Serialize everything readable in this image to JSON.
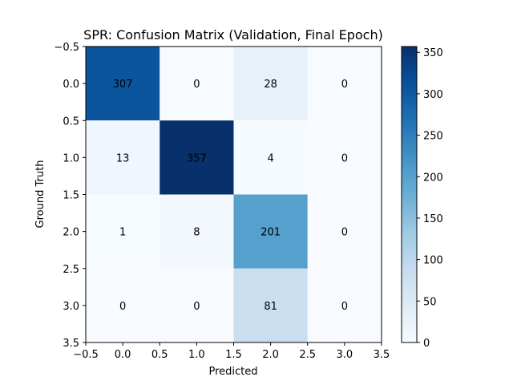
{
  "chart_data": {
    "type": "heatmap",
    "title": "SPR: Confusion Matrix (Validation, Final Epoch)",
    "xlabel": "Predicted",
    "ylabel": "Ground Truth",
    "rows": [
      0,
      1,
      2,
      3
    ],
    "cols": [
      0,
      1,
      2,
      3
    ],
    "matrix": [
      [
        307,
        0,
        28,
        0
      ],
      [
        13,
        357,
        4,
        0
      ],
      [
        1,
        8,
        201,
        0
      ],
      [
        0,
        0,
        81,
        0
      ]
    ],
    "cell_labels": [
      [
        "307",
        "0",
        "28",
        "0"
      ],
      [
        "13",
        "357",
        "4",
        "0"
      ],
      [
        "1",
        "8",
        "201",
        "0"
      ],
      [
        "0",
        "0",
        "81",
        "0"
      ]
    ],
    "xlim": [
      -0.5,
      3.5
    ],
    "ylim": [
      3.5,
      -0.5
    ],
    "xticks": [
      -0.5,
      0.0,
      0.5,
      1.0,
      1.5,
      2.0,
      2.5,
      3.0,
      3.5
    ],
    "xtick_labels": [
      "−0.5",
      "0.0",
      "0.5",
      "1.0",
      "1.5",
      "2.0",
      "2.5",
      "3.0",
      "3.5"
    ],
    "yticks": [
      -0.5,
      0.0,
      0.5,
      1.0,
      1.5,
      2.0,
      2.5,
      3.0,
      3.5
    ],
    "ytick_labels": [
      "−0.5",
      "0.0",
      "0.5",
      "1.0",
      "1.5",
      "2.0",
      "2.5",
      "3.0",
      "3.5"
    ],
    "colormap": "Blues",
    "color_range": [
      0,
      357
    ],
    "colorbar_ticks": [
      0,
      50,
      100,
      150,
      200,
      250,
      300,
      350
    ],
    "colorbar_tick_labels": [
      "0",
      "50",
      "100",
      "150",
      "200",
      "250",
      "300",
      "350"
    ],
    "grid": false,
    "legend": "none"
  }
}
